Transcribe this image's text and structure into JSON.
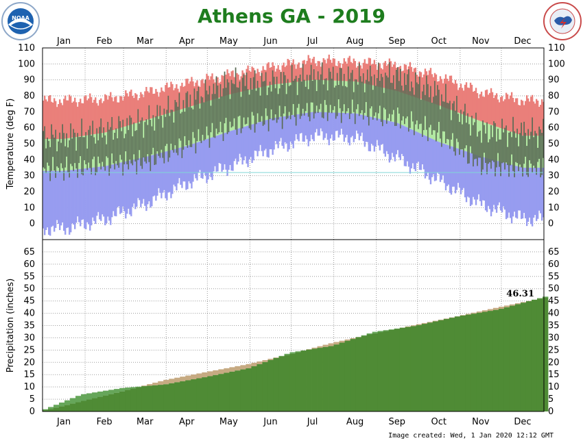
{
  "header": {
    "title": "Athens GA - 2019",
    "left_logo": "noaa-logo",
    "right_logo": "national-weather-service-logo",
    "created": "Image created: Wed, 1 Jan 2020 12:12 GMT"
  },
  "colors": {
    "title": "#1e7d1e",
    "record_high": "#ea7f7a",
    "normal_band": "#b2e8a2",
    "record_low": "#979cf0",
    "observed": "#5a6b55",
    "freezing_line": "#7fd6d6",
    "normal_precip": "#c6aa82",
    "observed_precip": "#4f8b35",
    "observed_precip_above": "#66a65a"
  },
  "chart_data": [
    {
      "type": "bar",
      "name": "temperature",
      "ylabel": "Temperature (deg F)",
      "ylim": [
        -10,
        110
      ],
      "yticks": [
        0,
        10,
        20,
        30,
        40,
        50,
        60,
        70,
        80,
        90,
        100,
        110
      ],
      "months": [
        "Jan",
        "Feb",
        "Mar",
        "Apr",
        "May",
        "Jun",
        "Jul",
        "Aug",
        "Sep",
        "Oct",
        "Nov",
        "Dec"
      ],
      "month_start_days": [
        0,
        31,
        59,
        90,
        120,
        151,
        181,
        212,
        243,
        273,
        304,
        334
      ],
      "freezing_line": 32,
      "record_high": [
        77,
        78,
        82,
        88,
        93,
        98,
        102,
        101,
        99,
        92,
        82,
        77
      ],
      "normal_high": [
        53,
        57,
        65,
        73,
        81,
        87,
        90,
        89,
        83,
        74,
        64,
        55
      ],
      "normal_low": [
        33,
        36,
        42,
        49,
        58,
        66,
        70,
        69,
        63,
        51,
        42,
        35
      ],
      "record_low": [
        -3,
        3,
        13,
        26,
        36,
        47,
        55,
        54,
        41,
        27,
        12,
        3
      ],
      "observed_high": [
        54,
        58,
        64,
        77,
        88,
        88,
        92,
        91,
        92,
        81,
        58,
        57
      ],
      "observed_low": [
        34,
        37,
        39,
        50,
        61,
        66,
        71,
        70,
        66,
        56,
        37,
        35
      ],
      "grid": true
    },
    {
      "type": "area",
      "name": "precipitation",
      "ylabel": "Precipitation (inches)",
      "ylim": [
        0,
        70
      ],
      "yticks": [
        0,
        5,
        10,
        15,
        20,
        25,
        30,
        35,
        40,
        45,
        50,
        55,
        60,
        65
      ],
      "months": [
        "Jan",
        "Feb",
        "Mar",
        "Apr",
        "May",
        "Jun",
        "Jul",
        "Aug",
        "Sep",
        "Oct",
        "Nov",
        "Dec"
      ],
      "normal_cumulative_end_of_month": [
        4.1,
        8.3,
        12.8,
        16.1,
        19.3,
        23.4,
        27.9,
        31.8,
        35.3,
        38.8,
        42.5,
        46.1
      ],
      "observed_cumulative_end_of_month": [
        6.9,
        9.6,
        11.0,
        14.1,
        17.6,
        24.0,
        26.7,
        32.4,
        34.9,
        38.7,
        41.6,
        46.31
      ],
      "total_label": "46.31",
      "grid": true
    }
  ]
}
